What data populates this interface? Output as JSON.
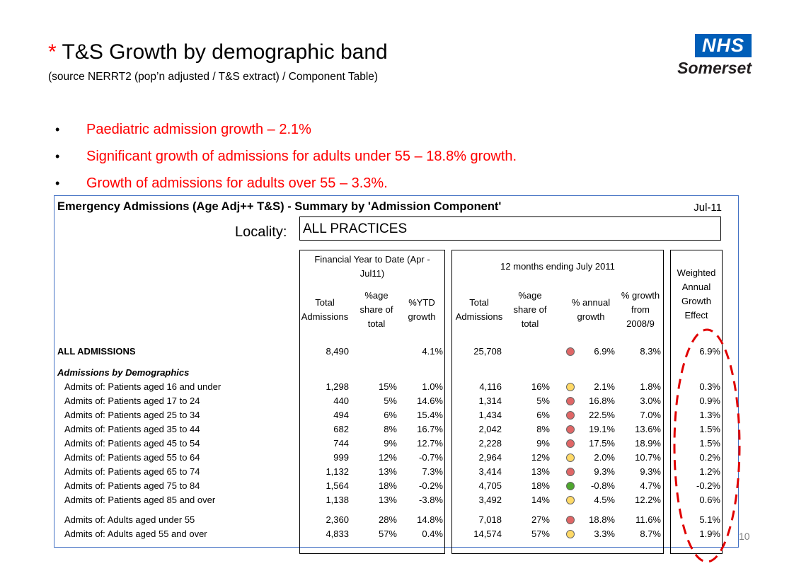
{
  "slide": {
    "title_star": "*",
    "title": "T&S Growth by demographic band",
    "subtitle": "(source NERRT2 (pop’n adjusted / T&S extract) / Component Table)",
    "logo_badge": "NHS",
    "logo_org": "Somerset",
    "page_number": "10",
    "bullets": [
      "Paediatric admission growth – 2.1%",
      "Significant growth of admissions for adults under 55 – 18.8% growth.",
      "Growth of admissions for adults over 55 – 3.3%."
    ]
  },
  "report": {
    "title": "Emergency Admissions (Age Adj++ T&S) - Summary by 'Admission Component'",
    "date": "Jul-11",
    "locality_label": "Locality:",
    "locality_value": "ALL PRACTICES",
    "group_ytd": "Financial Year to Date (Apr - Jul11)",
    "group_12m": "12 months ending July 2011",
    "columns": {
      "ytd_total": "Total Admissions",
      "ytd_share": "%age share of total",
      "ytd_growth": "%YTD growth",
      "m12_total": "Total Admissions",
      "m12_share": "%age share of total",
      "m12_annual": "% annual growth",
      "m12_since": "% growth from 2008/9",
      "weighted": "Weighted Annual Growth Effect"
    },
    "section_label": "Admissions by Demographics",
    "status_colors": {
      "red": "#e06666",
      "amber": "#ffd966",
      "green": "#4ea72e"
    },
    "rows": [
      {
        "label": "ALL ADMISSIONS",
        "ytd_total": "8,490",
        "ytd_share": "",
        "ytd_growth": "4.1%",
        "m12_total": "25,708",
        "m12_share": "",
        "status": "red",
        "m12_annual": "6.9%",
        "m12_since": "8.3%",
        "weighted": "6.9%"
      },
      {
        "label": "Admits of: Patients aged 16 and under",
        "ytd_total": "1,298",
        "ytd_share": "15%",
        "ytd_growth": "1.0%",
        "m12_total": "4,116",
        "m12_share": "16%",
        "status": "amber",
        "m12_annual": "2.1%",
        "m12_since": "1.8%",
        "weighted": "0.3%"
      },
      {
        "label": "Admits of: Patients aged 17 to 24",
        "ytd_total": "440",
        "ytd_share": "5%",
        "ytd_growth": "14.6%",
        "m12_total": "1,314",
        "m12_share": "5%",
        "status": "red",
        "m12_annual": "16.8%",
        "m12_since": "3.0%",
        "weighted": "0.9%"
      },
      {
        "label": "Admits of: Patients aged 25 to 34",
        "ytd_total": "494",
        "ytd_share": "6%",
        "ytd_growth": "15.4%",
        "m12_total": "1,434",
        "m12_share": "6%",
        "status": "red",
        "m12_annual": "22.5%",
        "m12_since": "7.0%",
        "weighted": "1.3%"
      },
      {
        "label": "Admits of: Patients aged 35 to 44",
        "ytd_total": "682",
        "ytd_share": "8%",
        "ytd_growth": "16.7%",
        "m12_total": "2,042",
        "m12_share": "8%",
        "status": "red",
        "m12_annual": "19.1%",
        "m12_since": "13.6%",
        "weighted": "1.5%"
      },
      {
        "label": "Admits of: Patients aged 45 to 54",
        "ytd_total": "744",
        "ytd_share": "9%",
        "ytd_growth": "12.7%",
        "m12_total": "2,228",
        "m12_share": "9%",
        "status": "red",
        "m12_annual": "17.5%",
        "m12_since": "18.9%",
        "weighted": "1.5%"
      },
      {
        "label": "Admits of: Patients aged 55 to 64",
        "ytd_total": "999",
        "ytd_share": "12%",
        "ytd_growth": "-0.7%",
        "m12_total": "2,964",
        "m12_share": "12%",
        "status": "amber",
        "m12_annual": "2.0%",
        "m12_since": "10.7%",
        "weighted": "0.2%"
      },
      {
        "label": "Admits of: Patients aged 65 to 74",
        "ytd_total": "1,132",
        "ytd_share": "13%",
        "ytd_growth": "7.3%",
        "m12_total": "3,414",
        "m12_share": "13%",
        "status": "red",
        "m12_annual": "9.3%",
        "m12_since": "9.3%",
        "weighted": "1.2%"
      },
      {
        "label": "Admits of: Patients aged 75 to 84",
        "ytd_total": "1,564",
        "ytd_share": "18%",
        "ytd_growth": "-0.2%",
        "m12_total": "4,705",
        "m12_share": "18%",
        "status": "green",
        "m12_annual": "-0.8%",
        "m12_since": "4.7%",
        "weighted": "-0.2%"
      },
      {
        "label": "Admits of: Patients aged 85 and over",
        "ytd_total": "1,138",
        "ytd_share": "13%",
        "ytd_growth": "-3.8%",
        "m12_total": "3,492",
        "m12_share": "14%",
        "status": "amber",
        "m12_annual": "4.5%",
        "m12_since": "12.2%",
        "weighted": "0.6%"
      },
      {
        "label": "Admits of: Adults aged under 55",
        "ytd_total": "2,360",
        "ytd_share": "28%",
        "ytd_growth": "14.8%",
        "m12_total": "7,018",
        "m12_share": "27%",
        "status": "red",
        "m12_annual": "18.8%",
        "m12_since": "11.6%",
        "weighted": "5.1%"
      },
      {
        "label": "Admits of: Adults aged 55 and over",
        "ytd_total": "4,833",
        "ytd_share": "57%",
        "ytd_growth": "0.4%",
        "m12_total": "14,574",
        "m12_share": "57%",
        "status": "amber",
        "m12_annual": "3.3%",
        "m12_since": "8.7%",
        "weighted": "1.9%"
      }
    ]
  }
}
